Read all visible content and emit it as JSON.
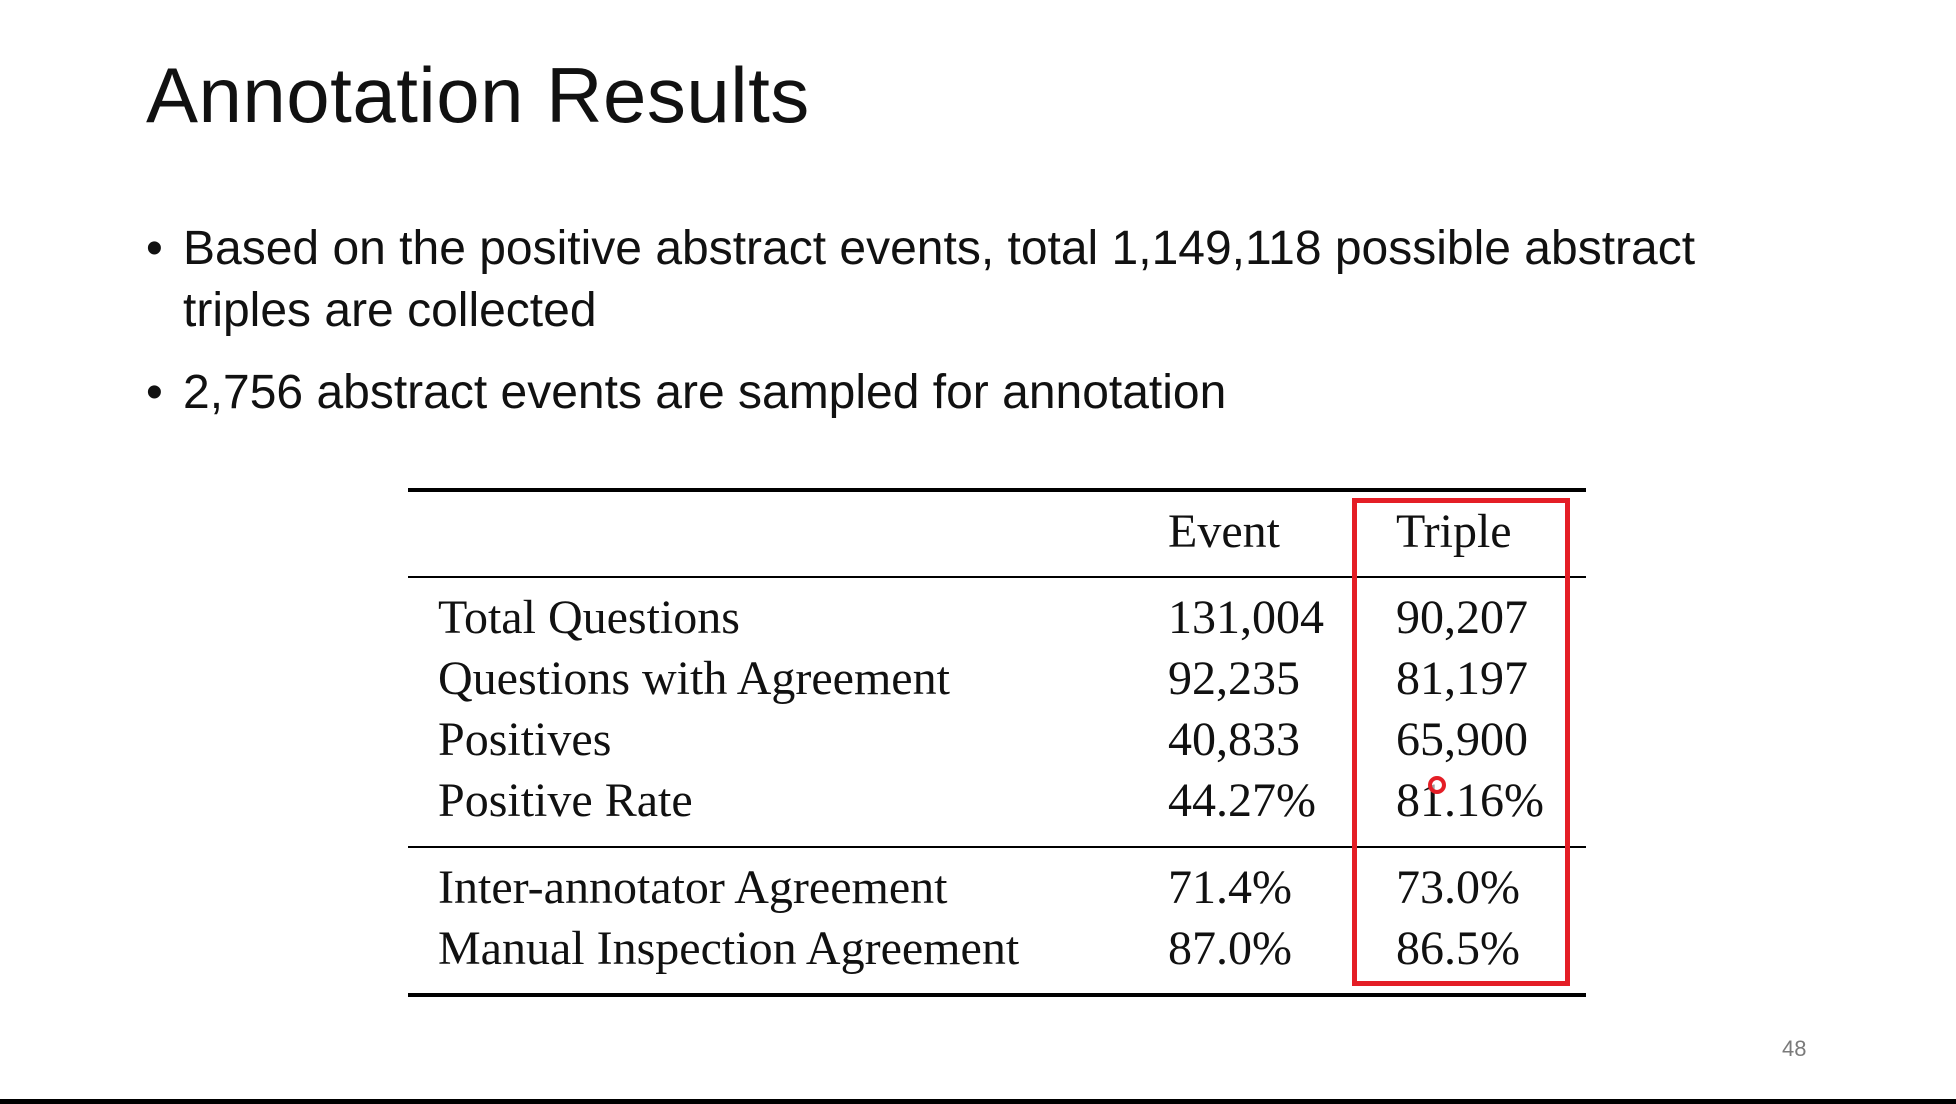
{
  "slide": {
    "title": "Annotation Results",
    "bullets": [
      "Based on the positive abstract events, total 1,149,118 possible abstract triples are collected",
      "2,756 abstract events are sampled for annotation"
    ],
    "page_number": "48",
    "highlight_color": "#e41e26"
  },
  "table": {
    "columns": [
      "",
      "Event",
      "Triple"
    ],
    "rows": [
      {
        "label": "Total Questions",
        "event": "131,004",
        "triple": "90,207"
      },
      {
        "label": "Questions with Agreement",
        "event": "92,235",
        "triple": "81,197"
      },
      {
        "label": "Positives",
        "event": "40,833",
        "triple": "65,900"
      },
      {
        "label": "Positive Rate",
        "event": "44.27%",
        "triple": "81.16%"
      },
      {
        "label": "Inter-annotator Agreement",
        "event": "71.4%",
        "triple": "73.0%"
      },
      {
        "label": "Manual Inspection Agreement",
        "event": "87.0%",
        "triple": "86.5%"
      }
    ]
  }
}
